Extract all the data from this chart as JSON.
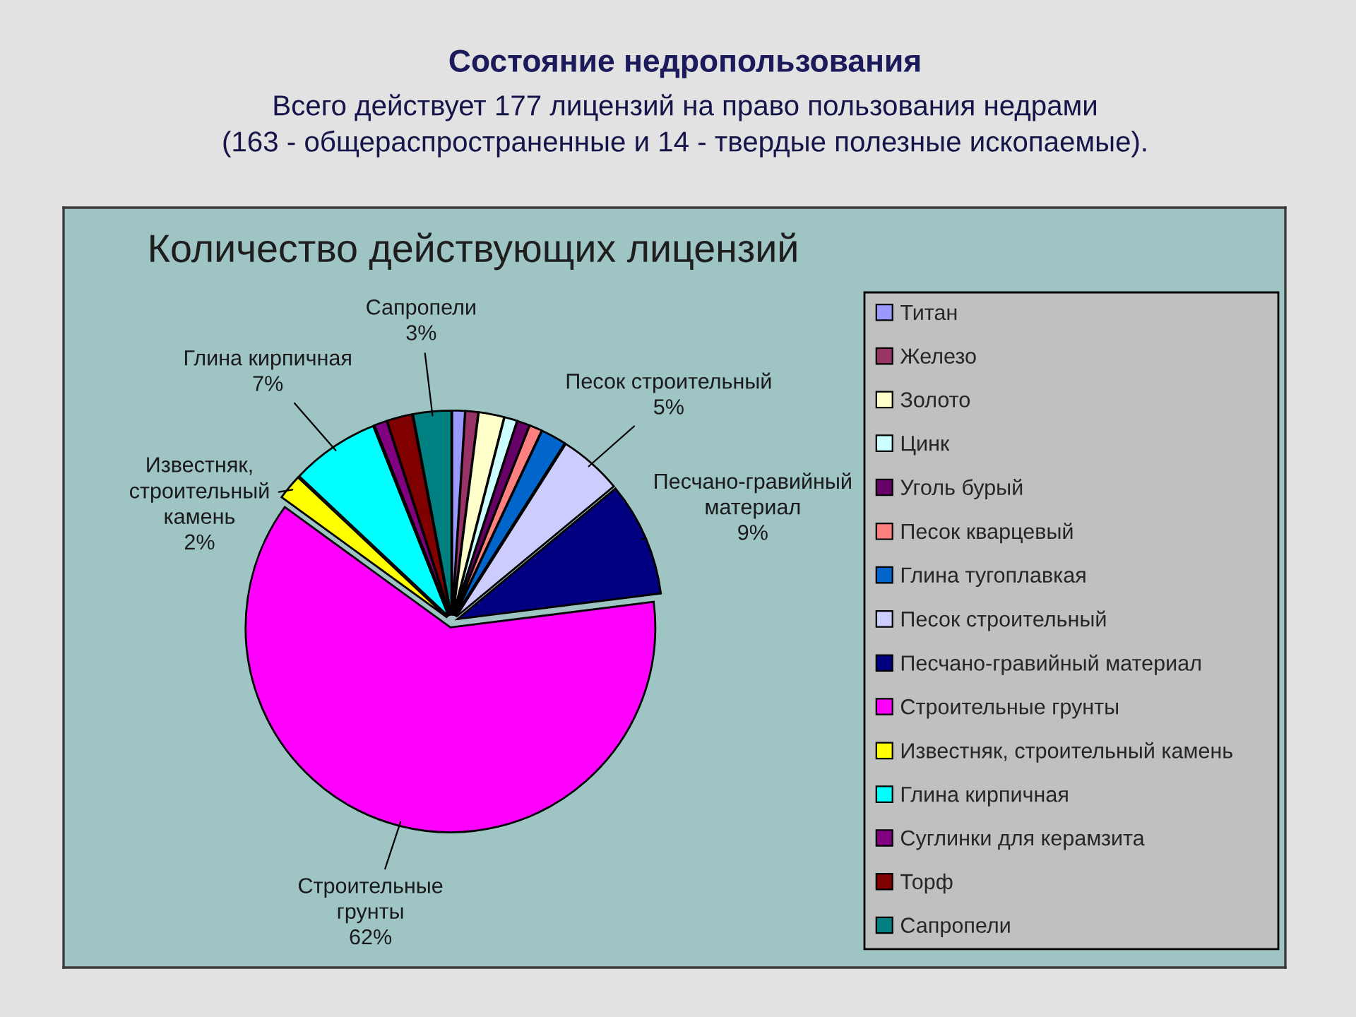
{
  "chart_data": {
    "type": "pie",
    "title": "Состояние недропользования",
    "subtitle": "Всего действует 177 лицензий на право пользования недрами\n(163 - общераспространенные и 14 - твердые полезные ископаемые).",
    "annotations": [
      "Количество действующих лицензий"
    ],
    "categories": [
      "Титан",
      "Железо",
      "Золото",
      "Цинк",
      "Уголь бурый",
      "Песок кварцевый",
      "Глина тугоплавкая",
      "Песок строительный",
      "Песчано-гравийный материал",
      "Строительные грунты",
      "Известняк, строительный камень",
      "Глина кирпичная",
      "Суглинки для керамзита",
      "Торф",
      "Сапропели"
    ],
    "values": [
      1,
      1,
      2,
      1,
      1,
      1,
      2,
      5,
      9,
      62,
      2,
      7,
      1,
      2,
      3
    ],
    "colors": [
      "#9999ff",
      "#993366",
      "#ffffcc",
      "#ccffff",
      "#660066",
      "#ff8080",
      "#0066cc",
      "#ccccff",
      "#000080",
      "#ff00ff",
      "#ffff00",
      "#00ffff",
      "#800080",
      "#800000",
      "#008080"
    ],
    "value_labels": [
      null,
      null,
      null,
      null,
      null,
      null,
      null,
      "Песок строительный\n5%",
      "Песчано-гравийный\nматериал\n9%",
      "Строительные\nгрунты\n62%",
      "Известняк,\nстроительный\nкамень\n2%",
      "Глина кирпичная\n7%",
      null,
      null,
      "Сапропели\n3%"
    ],
    "legend": "right"
  }
}
